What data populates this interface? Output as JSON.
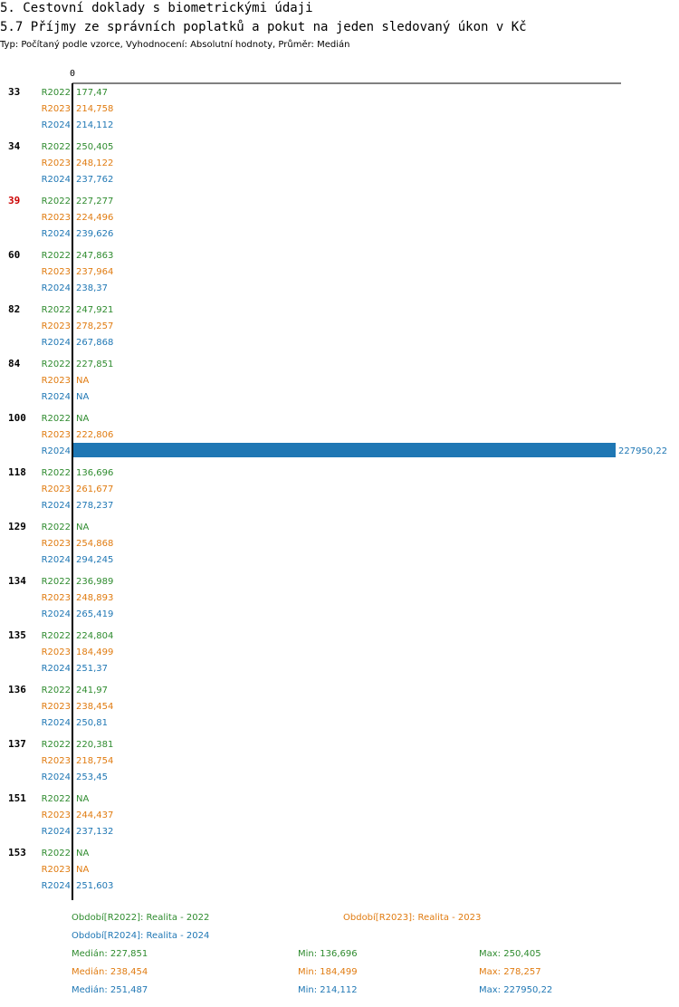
{
  "header": {
    "section_title": "5. Cestovní doklady s biometrickými údaji",
    "chart_title": "5.7 Příjmy ze správních poplatků a pokut na jeden sledovaný úkon v Kč",
    "subtitle": "Typ: Počítaný podle vzorce, Vyhodnocení: Absolutní hodnoty, Průměr: Medián"
  },
  "colors": {
    "R2022": "#2e8b2e",
    "R2023": "#e07b10",
    "R2024": "#1f77b4",
    "highlight_group": "#cc0000",
    "bar": "#1f77b4"
  },
  "chart_data": {
    "type": "bar",
    "orientation": "horizontal",
    "axis_zero_label": "0",
    "series_names": [
      "R2022",
      "R2023",
      "R2024"
    ],
    "groups": [
      {
        "id": "33",
        "highlight": false,
        "values": [
          "177,47",
          "214,758",
          "214,112"
        ]
      },
      {
        "id": "34",
        "highlight": false,
        "values": [
          "250,405",
          "248,122",
          "237,762"
        ]
      },
      {
        "id": "39",
        "highlight": true,
        "values": [
          "227,277",
          "224,496",
          "239,626"
        ]
      },
      {
        "id": "60",
        "highlight": false,
        "values": [
          "247,863",
          "237,964",
          "238,37"
        ]
      },
      {
        "id": "82",
        "highlight": false,
        "values": [
          "247,921",
          "278,257",
          "267,868"
        ]
      },
      {
        "id": "84",
        "highlight": false,
        "values": [
          "227,851",
          "NA",
          "NA"
        ]
      },
      {
        "id": "100",
        "highlight": false,
        "values": [
          "NA",
          "222,806",
          "227950,22"
        ]
      },
      {
        "id": "118",
        "highlight": false,
        "values": [
          "136,696",
          "261,677",
          "278,237"
        ]
      },
      {
        "id": "129",
        "highlight": false,
        "values": [
          "NA",
          "254,868",
          "294,245"
        ]
      },
      {
        "id": "134",
        "highlight": false,
        "values": [
          "236,989",
          "248,893",
          "265,419"
        ]
      },
      {
        "id": "135",
        "highlight": false,
        "values": [
          "224,804",
          "184,499",
          "251,37"
        ]
      },
      {
        "id": "136",
        "highlight": false,
        "values": [
          "241,97",
          "238,454",
          "250,81"
        ]
      },
      {
        "id": "137",
        "highlight": false,
        "values": [
          "220,381",
          "218,754",
          "253,45"
        ]
      },
      {
        "id": "151",
        "highlight": false,
        "values": [
          "NA",
          "244,437",
          "237,132"
        ]
      },
      {
        "id": "153",
        "highlight": false,
        "values": [
          "NA",
          "NA",
          "251,603"
        ]
      }
    ],
    "xlim": [
      0,
      227950.22
    ]
  },
  "legend": {
    "periods": [
      {
        "key": "R2022",
        "text": "Období[R2022]: Realita - 2022"
      },
      {
        "key": "R2023",
        "text": "Období[R2023]: Realita - 2023"
      },
      {
        "key": "R2024",
        "text": "Období[R2024]: Realita - 2024"
      }
    ],
    "stats": [
      {
        "key": "R2022",
        "median": "Medián: 227,851",
        "min": "Min: 136,696",
        "max": "Max: 250,405"
      },
      {
        "key": "R2023",
        "median": "Medián: 238,454",
        "min": "Min: 184,499",
        "max": "Max: 278,257"
      },
      {
        "key": "R2024",
        "median": "Medián: 251,487",
        "min": "Min: 214,112",
        "max": "Max: 227950,22"
      }
    ]
  }
}
